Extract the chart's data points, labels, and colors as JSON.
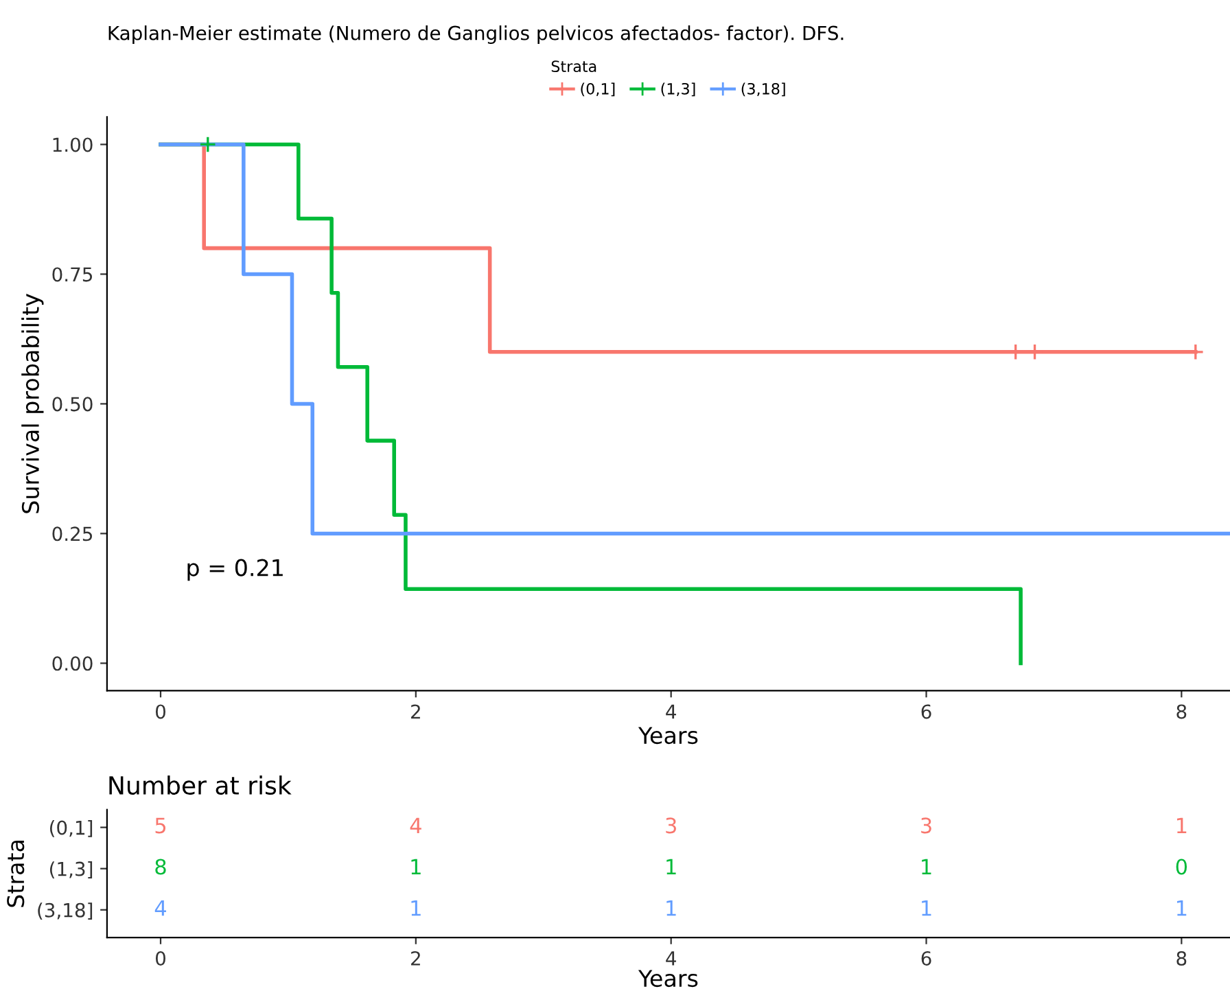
{
  "chart_data": [
    {
      "type": "step",
      "title": "Kaplan-Meier estimate (Numero de Ganglios pelvicos afectados- factor). DFS.",
      "xlabel": "Years",
      "ylabel": "Survival probability",
      "legend_title": "Strata",
      "legend": "top",
      "grid": false,
      "xlim": [
        -0.42,
        8.38
      ],
      "xticks": [
        0,
        2,
        4,
        6,
        8
      ],
      "ylim": [
        -0.053,
        1.053
      ],
      "yticks": [
        {
          "value": 0,
          "label": "0.00"
        },
        {
          "value": 0.25,
          "label": "0.25"
        },
        {
          "value": 0.5,
          "label": "0.50"
        },
        {
          "value": 0.75,
          "label": "0.75"
        },
        {
          "value": 1,
          "label": "1.00"
        }
      ],
      "annotations": [
        "p = 0.21"
      ],
      "series": [
        {
          "name": "(0,1]",
          "color": "#f8766d",
          "x": [
            0,
            0.34,
            2.58,
            8.11
          ],
          "values": [
            1.0,
            0.8,
            0.6,
            0.6
          ]
        },
        {
          "name": "(1,3]",
          "color": "#00ba38",
          "x": [
            0,
            1.08,
            1.34,
            1.39,
            1.62,
            1.83,
            1.92,
            6.74
          ],
          "values": [
            1.0,
            0.857,
            0.714,
            0.571,
            0.429,
            0.286,
            0.143,
            0.0
          ]
        },
        {
          "name": "(3,18]",
          "color": "#619cff",
          "x": [
            0,
            0.65,
            1.03,
            1.19,
            8.38
          ],
          "values": [
            1.0,
            0.75,
            0.5,
            0.25,
            0.25
          ]
        },
        {
          "type": "scatter",
          "marker": "cross",
          "color": "#f8766d",
          "x": [
            6.7,
            6.85,
            8.11
          ],
          "values": [
            0.6,
            0.6,
            0.6
          ]
        },
        {
          "type": "scatter",
          "marker": "cross",
          "color": "#00ba38",
          "x": [
            0.37
          ],
          "values": [
            1.0
          ]
        }
      ]
    },
    {
      "type": "heatmap",
      "title": "Number at risk",
      "xlabel": "Years",
      "ylabel": "Strata",
      "data_labels": true,
      "categories": [
        "0",
        "2",
        "4",
        "6",
        "8"
      ],
      "y_categories": [
        "(0,1]",
        "(1,3]",
        "(3,18]"
      ],
      "colors": [
        "#f8766d",
        "#00ba38",
        "#619cff"
      ],
      "cells": [
        [
          5,
          4,
          3,
          3,
          1
        ],
        [
          8,
          1,
          1,
          1,
          0
        ],
        [
          4,
          1,
          1,
          1,
          1
        ]
      ]
    }
  ]
}
